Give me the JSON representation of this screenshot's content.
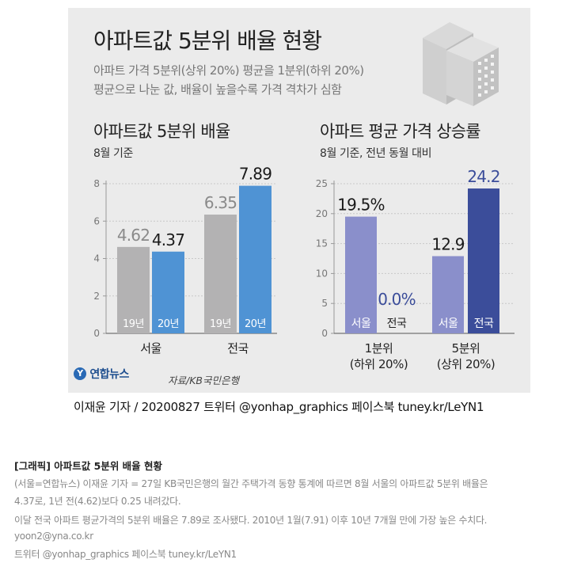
{
  "header": {
    "title": "아파트값 5분위 배율 현황",
    "subtitle_line1": "아파트 가격 5분위(상위 20%) 평균을 1분위(하위 20%)",
    "subtitle_line2": "평균으로 나눈 값, 배율이 높을수록 가격 격차가 심함"
  },
  "footer": {
    "logo": "연합뉴스",
    "source": "자료/KB국민은행",
    "byline": "이재윤 기자 / 20200827   트위터 @yonhap_graphics  페이스북 tuney.kr/LeYN1"
  },
  "article": {
    "title": "[그래픽] 아파트값 5분위 배율 현황",
    "line1": "(서울=연합뉴스) 이재윤 기자 = 27일 KB국민은행의 월간 주택가격 동향 통계에 따르면 8월 서울의 아파트값 5분위 배율은",
    "line2": "4.37로, 1년 전(4.62)보다 0.25 내려갔다.",
    "line3": "이달 전국 아파트 평균가격의 5분위 배율은 7.89로 조사됐다. 2010년 1월(7.91) 이후 10년 7개월 만에 가장 높은 수치다.",
    "email": "yoon2@yna.co.kr",
    "twitter": "트위터 @yonhap_graphics 페이스북 tuney.kr/LeYN1"
  },
  "chart_data": [
    {
      "type": "bar",
      "title": "아파트값 5분위 배율",
      "subtitle": "8월 기준",
      "categories": [
        "서울",
        "전국"
      ],
      "series": [
        {
          "name": "19년",
          "values": [
            4.62,
            6.35
          ],
          "color": "#b3b2b3"
        },
        {
          "name": "20년",
          "values": [
            4.37,
            7.89
          ],
          "color": "#4f93d4"
        }
      ],
      "ylim": [
        0,
        8
      ],
      "yticks": [
        0,
        2,
        4,
        6,
        8
      ],
      "value_labels": [
        "4.62",
        "4.37",
        "6.35",
        "7.89"
      ],
      "grid": true
    },
    {
      "type": "bar",
      "title": "아파트 평균 가격 상승률",
      "subtitle": "8월 기준, 전년 동월 대비",
      "categories": [
        "1분위\n(하위 20%)",
        "5분위\n(상위 20%)"
      ],
      "series": [
        {
          "name": "서울",
          "values": [
            19.5,
            12.9
          ],
          "color": "#8a8fcb"
        },
        {
          "name": "전국",
          "values": [
            0.0,
            24.2
          ],
          "color": "#3b4d9a"
        }
      ],
      "ylim": [
        0,
        25
      ],
      "yticks": [
        0,
        5,
        10,
        15,
        20,
        25
      ],
      "value_labels": [
        "19.5%",
        "0.0%",
        "12.9",
        "24.2"
      ],
      "grid": true
    }
  ]
}
